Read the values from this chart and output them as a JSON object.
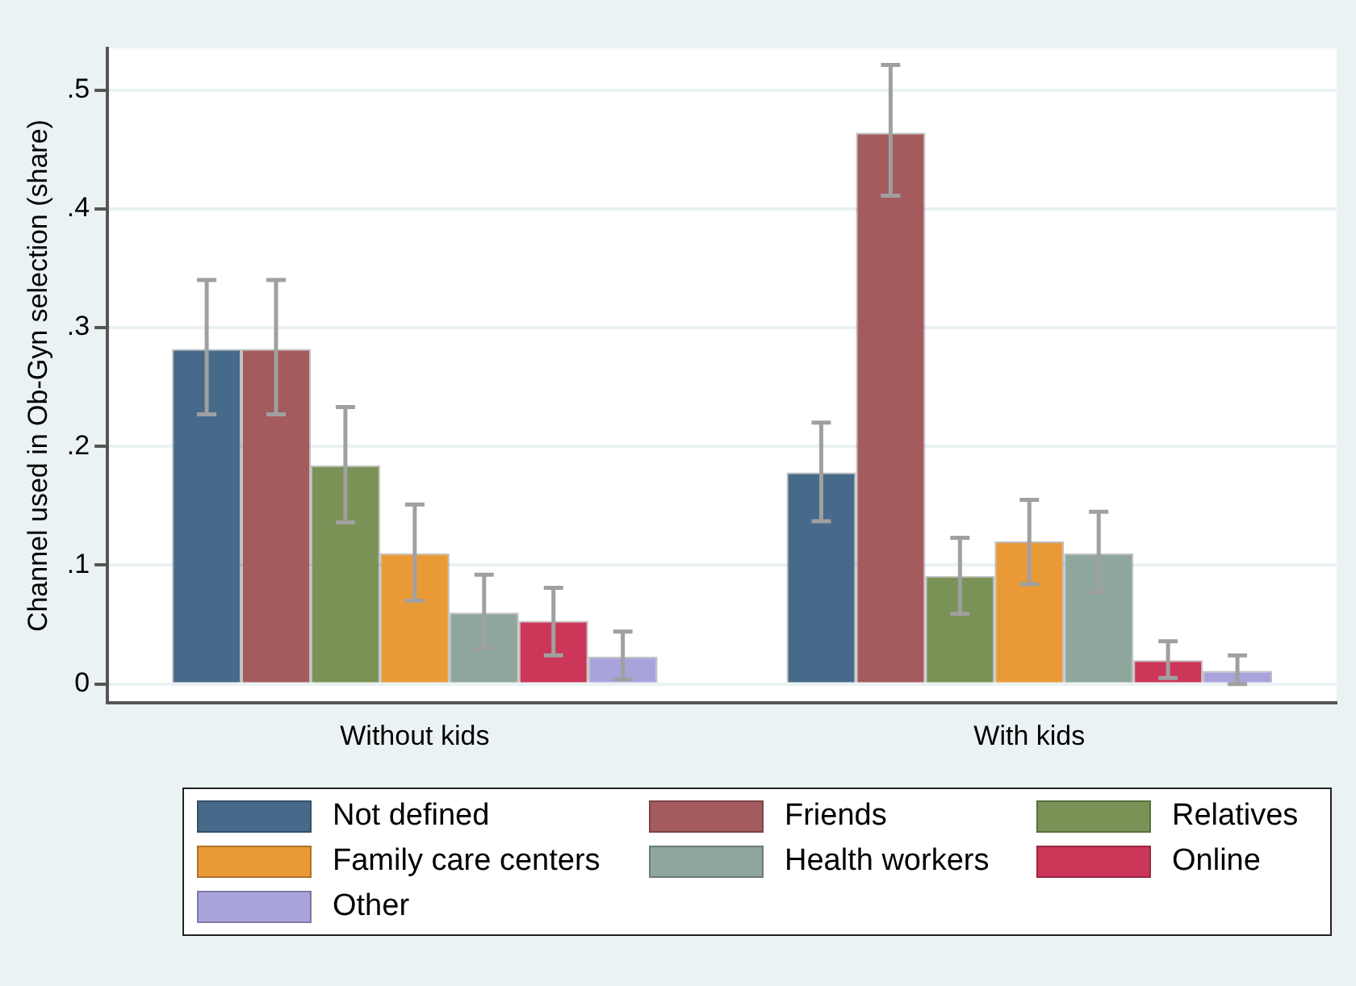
{
  "chart_data": {
    "type": "bar",
    "ylabel": "Channel used in Ob-Gyn selection (share)",
    "categories": [
      "Without kids",
      "With kids"
    ],
    "series": [
      {
        "name": "Not defined",
        "color": "#486a8a",
        "values": [
          0.282,
          0.178
        ],
        "errors": [
          [
            0.227,
            0.34
          ],
          [
            0.137,
            0.22
          ]
        ]
      },
      {
        "name": "Friends",
        "color": "#a45b5e",
        "values": [
          0.282,
          0.464
        ],
        "errors": [
          [
            0.227,
            0.34
          ],
          [
            0.411,
            0.521
          ]
        ]
      },
      {
        "name": "Relatives",
        "color": "#7a9256",
        "values": [
          0.184,
          0.091
        ],
        "errors": [
          [
            0.136,
            0.233
          ],
          [
            0.059,
            0.123
          ]
        ]
      },
      {
        "name": "Family care centers",
        "color": "#e99a37",
        "values": [
          0.11,
          0.12
        ],
        "errors": [
          [
            0.07,
            0.151
          ],
          [
            0.084,
            0.155
          ]
        ]
      },
      {
        "name": "Health workers",
        "color": "#8ea69b",
        "values": [
          0.06,
          0.11
        ],
        "errors": [
          [
            0.03,
            0.092
          ],
          [
            0.077,
            0.145
          ]
        ]
      },
      {
        "name": "Online",
        "color": "#cc3659",
        "values": [
          0.053,
          0.02
        ],
        "errors": [
          [
            0.024,
            0.081
          ],
          [
            0.005,
            0.036
          ]
        ]
      },
      {
        "name": "Other",
        "color": "#a9a3dc",
        "values": [
          0.023,
          0.011
        ],
        "errors": [
          [
            0.004,
            0.044
          ],
          [
            0.0,
            0.024
          ]
        ]
      }
    ],
    "ylim": [
      -0.016,
      0.535
    ],
    "yticks": [
      0,
      {
        "value": 0.1,
        "label": ".1"
      },
      {
        "value": 0.2,
        "label": ".2"
      },
      {
        "value": 0.3,
        "label": ".3"
      },
      {
        "value": 0.4,
        "label": ".4"
      },
      {
        "value": 0.5,
        "label": ".5"
      }
    ],
    "grid": "y",
    "legend": "bottom"
  }
}
